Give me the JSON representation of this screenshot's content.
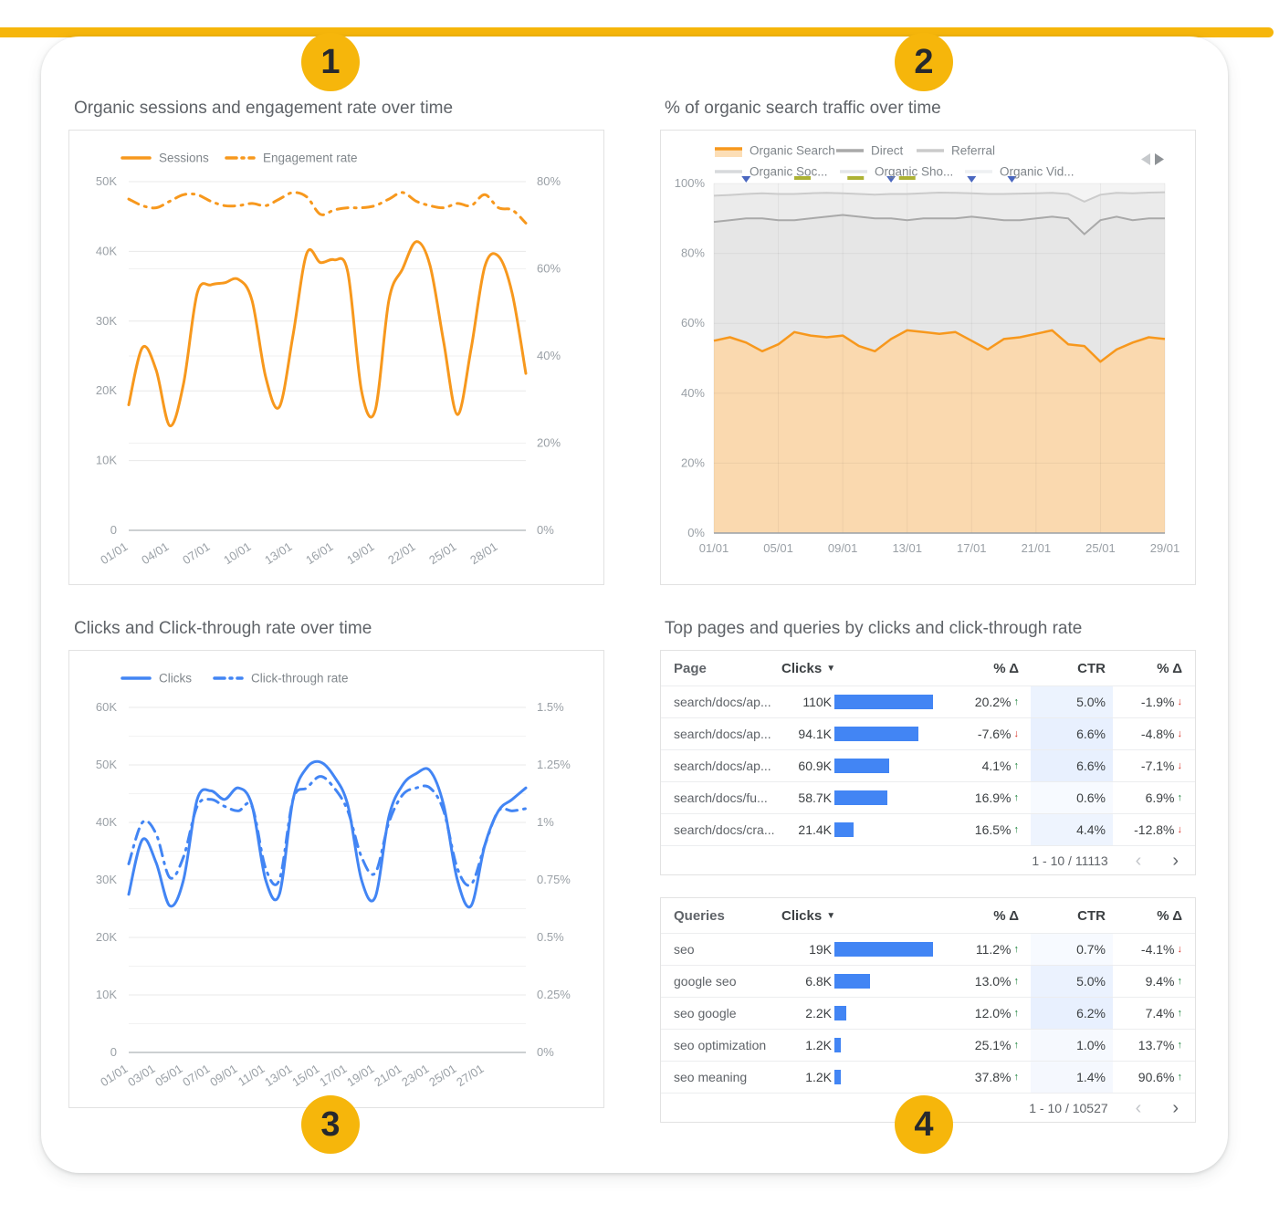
{
  "page": {
    "accent_color": "#F6B60B",
    "badges": [
      "1",
      "2",
      "3",
      "4"
    ]
  },
  "chart_data": [
    {
      "id": "sessions_engagement",
      "type": "line",
      "title": "Organic sessions and engagement rate over time",
      "legend_position": "top",
      "x_ticks": [
        "01/01",
        "04/01",
        "07/01",
        "10/01",
        "13/01",
        "16/01",
        "19/01",
        "22/01",
        "25/01",
        "28/01"
      ],
      "y_left": {
        "label": "Sessions (K)",
        "ticks": [
          "0",
          "10K",
          "20K",
          "30K",
          "40K",
          "50K"
        ],
        "min": 0,
        "max": 50
      },
      "y_right": {
        "label": "Engagement rate",
        "ticks": [
          "0%",
          "20%",
          "40%",
          "60%",
          "80%"
        ],
        "min": 0,
        "max": 80
      },
      "series": [
        {
          "name": "Sessions",
          "axis": "left",
          "style": "solid",
          "color": "#F7981D",
          "values": [
            18,
            26.2,
            23,
            15,
            21,
            34,
            35.2,
            35.5,
            36,
            33,
            22,
            17.7,
            28,
            39.7,
            38.4,
            38.8,
            37,
            20,
            17.2,
            33,
            37.5,
            41.4,
            38,
            27,
            16.6,
            26,
            37.8,
            39.3,
            34,
            22.5
          ]
        },
        {
          "name": "Engagement rate",
          "axis": "right",
          "style": "dashdot",
          "color": "#F7981D",
          "values": [
            76,
            74.5,
            74,
            75.5,
            77,
            77,
            75.5,
            74.5,
            74.5,
            75,
            74.5,
            76,
            77.5,
            76.5,
            72.5,
            73.5,
            74,
            74,
            74.5,
            76,
            77.5,
            75.5,
            74.5,
            74,
            75,
            74.5,
            77,
            74,
            73.5,
            70.5
          ]
        }
      ]
    },
    {
      "id": "organic_traffic_share",
      "type": "area",
      "title": "% of organic search traffic over time",
      "legend_position": "top",
      "legend_nav_icons": [
        "prev-arrow",
        "next-arrow"
      ],
      "x_ticks": [
        "01/01",
        "05/01",
        "09/01",
        "13/01",
        "17/01",
        "21/01",
        "25/01",
        "29/01"
      ],
      "y_ticks": [
        "0%",
        "20%",
        "40%",
        "60%",
        "80%",
        "100%"
      ],
      "ylim": [
        0,
        100
      ],
      "series": [
        {
          "name": "Organic Search",
          "color": "#F7981D",
          "fill": "#FAD9AF",
          "values": [
            55,
            56,
            54.5,
            52,
            54,
            57.5,
            56.5,
            56,
            56.5,
            53.5,
            52,
            55.5,
            58,
            57.5,
            57,
            57.5,
            55,
            52.5,
            55.5,
            56,
            57,
            58,
            54,
            53.5,
            49,
            52.5,
            54.5,
            56,
            55.5
          ]
        },
        {
          "name": "Direct",
          "color": "#A9A9A9",
          "fill": "#E6E6E6",
          "values": [
            89,
            89.5,
            90,
            90,
            89.5,
            89.5,
            90,
            90.5,
            91,
            90.5,
            90,
            90,
            89.5,
            90,
            90,
            90,
            90.5,
            90,
            89.5,
            89.5,
            90,
            90.5,
            90,
            85.5,
            89.5,
            90.5,
            89.5,
            90,
            90
          ]
        },
        {
          "name": "Referral",
          "color": "#CBCBCB",
          "fill": "#EBEBEB",
          "values": [
            96.5,
            96.7,
            97,
            97.2,
            97,
            97,
            97.2,
            97.3,
            97.2,
            97,
            96.8,
            97,
            97,
            97.2,
            97.4,
            97.3,
            97.2,
            97,
            97,
            97.1,
            97.2,
            97.3,
            97,
            94.8,
            96.8,
            97.3,
            97.2,
            97.4,
            97.5
          ]
        },
        {
          "name": "Organic Soc...",
          "color": "#D7D9DC"
        },
        {
          "name": "Organic Sho...",
          "color": "#E4E6E9"
        },
        {
          "name": "Organic Vid...",
          "color": "#EEF0F2"
        }
      ],
      "markers": {
        "triangle_days": [
          3,
          12,
          17,
          19.5
        ],
        "dash_days": [
          6.5,
          9.8,
          13
        ],
        "triangle_color": "#4A67C0",
        "dash_color": "#ADB234"
      }
    },
    {
      "id": "clicks_ctr",
      "type": "line",
      "title": "Clicks and Click-through rate over time",
      "legend_position": "top",
      "x_ticks": [
        "01/01",
        "03/01",
        "05/01",
        "07/01",
        "09/01",
        "11/01",
        "13/01",
        "15/01",
        "17/01",
        "19/01",
        "21/01",
        "23/01",
        "25/01",
        "27/01"
      ],
      "y_left": {
        "label": "Clicks (K)",
        "ticks": [
          "0",
          "10K",
          "20K",
          "30K",
          "40K",
          "50K",
          "60K"
        ],
        "min": 0,
        "max": 60
      },
      "y_right": {
        "label": "Click-through rate",
        "ticks": [
          "0%",
          "0.25%",
          "0.5%",
          "0.75%",
          "1%",
          "1.25%",
          "1.5%"
        ],
        "min": 0,
        "max": 1.5
      },
      "series": [
        {
          "name": "Clicks",
          "axis": "left",
          "style": "solid",
          "color": "#4285F4",
          "values": [
            27.5,
            37,
            33,
            25.5,
            30,
            44,
            45.5,
            44,
            46,
            43,
            30,
            27.5,
            44,
            49.5,
            50.5,
            48,
            43,
            30,
            27,
            41,
            46.5,
            48.5,
            49,
            43,
            30,
            25.5,
            36,
            42,
            44,
            46
          ]
        },
        {
          "name": "Click-through rate",
          "axis": "right",
          "style": "dashdot",
          "color": "#4285F4",
          "values": [
            0.82,
            1.0,
            0.95,
            0.76,
            0.85,
            1.07,
            1.1,
            1.07,
            1.05,
            1.07,
            0.8,
            0.75,
            1.1,
            1.15,
            1.2,
            1.15,
            1.05,
            0.85,
            0.78,
            1.0,
            1.12,
            1.15,
            1.15,
            1.05,
            0.8,
            0.73,
            0.9,
            1.05,
            1.05,
            1.06
          ]
        }
      ]
    },
    {
      "id": "top_pages_queries",
      "type": "table",
      "title": "Top pages and queries by clicks and click-through rate",
      "icons": {
        "sort": "▼",
        "prev": "‹",
        "next": "›",
        "up": "↑",
        "down": "↓"
      },
      "tables": [
        {
          "columns": [
            "Page",
            "Clicks",
            "% Δ",
            "CTR",
            "% Δ"
          ],
          "rows": [
            {
              "label": "search/docs/ap...",
              "clicks": "110K",
              "clicks_num": 110,
              "delta1": "20.2%",
              "delta1_dir": "up",
              "ctr": "5.0%",
              "ctr_num": 5.0,
              "delta2": "-1.9%",
              "delta2_dir": "down"
            },
            {
              "label": "search/docs/ap...",
              "clicks": "94.1K",
              "clicks_num": 94.1,
              "delta1": "-7.6%",
              "delta1_dir": "down",
              "ctr": "6.6%",
              "ctr_num": 6.6,
              "delta2": "-4.8%",
              "delta2_dir": "down"
            },
            {
              "label": "search/docs/ap...",
              "clicks": "60.9K",
              "clicks_num": 60.9,
              "delta1": "4.1%",
              "delta1_dir": "up",
              "ctr": "6.6%",
              "ctr_num": 6.6,
              "delta2": "-7.1%",
              "delta2_dir": "down"
            },
            {
              "label": "search/docs/fu...",
              "clicks": "58.7K",
              "clicks_num": 58.7,
              "delta1": "16.9%",
              "delta1_dir": "up",
              "ctr": "0.6%",
              "ctr_num": 0.6,
              "delta2": "6.9%",
              "delta2_dir": "up"
            },
            {
              "label": "search/docs/cra...",
              "clicks": "21.4K",
              "clicks_num": 21.4,
              "delta1": "16.5%",
              "delta1_dir": "up",
              "ctr": "4.4%",
              "ctr_num": 4.4,
              "delta2": "-12.8%",
              "delta2_dir": "down"
            }
          ],
          "pagination": "1 - 10 / 11113"
        },
        {
          "columns": [
            "Queries",
            "Clicks",
            "% Δ",
            "CTR",
            "% Δ"
          ],
          "rows": [
            {
              "label": "seo",
              "clicks": "19K",
              "clicks_num": 19,
              "delta1": "11.2%",
              "delta1_dir": "up",
              "ctr": "0.7%",
              "ctr_num": 0.7,
              "delta2": "-4.1%",
              "delta2_dir": "down"
            },
            {
              "label": "google seo",
              "clicks": "6.8K",
              "clicks_num": 6.8,
              "delta1": "13.0%",
              "delta1_dir": "up",
              "ctr": "5.0%",
              "ctr_num": 5.0,
              "delta2": "9.4%",
              "delta2_dir": "up"
            },
            {
              "label": "seo google",
              "clicks": "2.2K",
              "clicks_num": 2.2,
              "delta1": "12.0%",
              "delta1_dir": "up",
              "ctr": "6.2%",
              "ctr_num": 6.2,
              "delta2": "7.4%",
              "delta2_dir": "up"
            },
            {
              "label": "seo optimization",
              "clicks": "1.2K",
              "clicks_num": 1.2,
              "delta1": "25.1%",
              "delta1_dir": "up",
              "ctr": "1.0%",
              "ctr_num": 1.0,
              "delta2": "13.7%",
              "delta2_dir": "up"
            },
            {
              "label": "seo meaning",
              "clicks": "1.2K",
              "clicks_num": 1.2,
              "delta1": "37.8%",
              "delta1_dir": "up",
              "ctr": "1.4%",
              "ctr_num": 1.4,
              "delta2": "90.6%",
              "delta2_dir": "up"
            }
          ],
          "pagination": "1 - 10 / 10527"
        }
      ]
    }
  ]
}
